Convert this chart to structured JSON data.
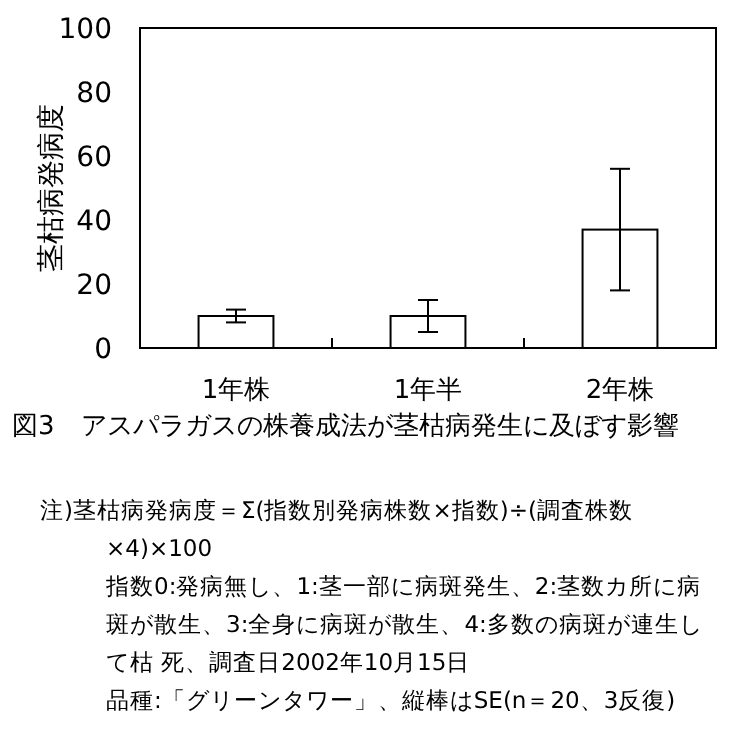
{
  "chart_data": {
    "type": "bar",
    "title": "図3　アスパラガスの株養成法が茎枯病発生に及ぼす影響",
    "ylabel": "茎枯病発病度",
    "categories": [
      "1年株",
      "1年半",
      "2年株"
    ],
    "values": [
      10,
      10,
      37
    ],
    "errors": [
      2,
      5,
      19
    ],
    "color": "#ffffff",
    "ylim": [
      0,
      100
    ],
    "yticks": [
      0,
      20,
      40,
      60,
      80,
      100
    ],
    "annotations": [
      "注)茎枯病発病度＝Σ(指数別発病株数×指数)÷(調査株数×4)×100",
      "指数0:発病無し、1:茎一部に病斑発生、2:茎数カ所に病斑が散生、3:全身に病斑が散生、4:多数の病斑が連生して枯 死、調査日2002年10月15日",
      "品種:「グリーンタワー」、縦棒はSE(n＝20、3反復)"
    ]
  }
}
